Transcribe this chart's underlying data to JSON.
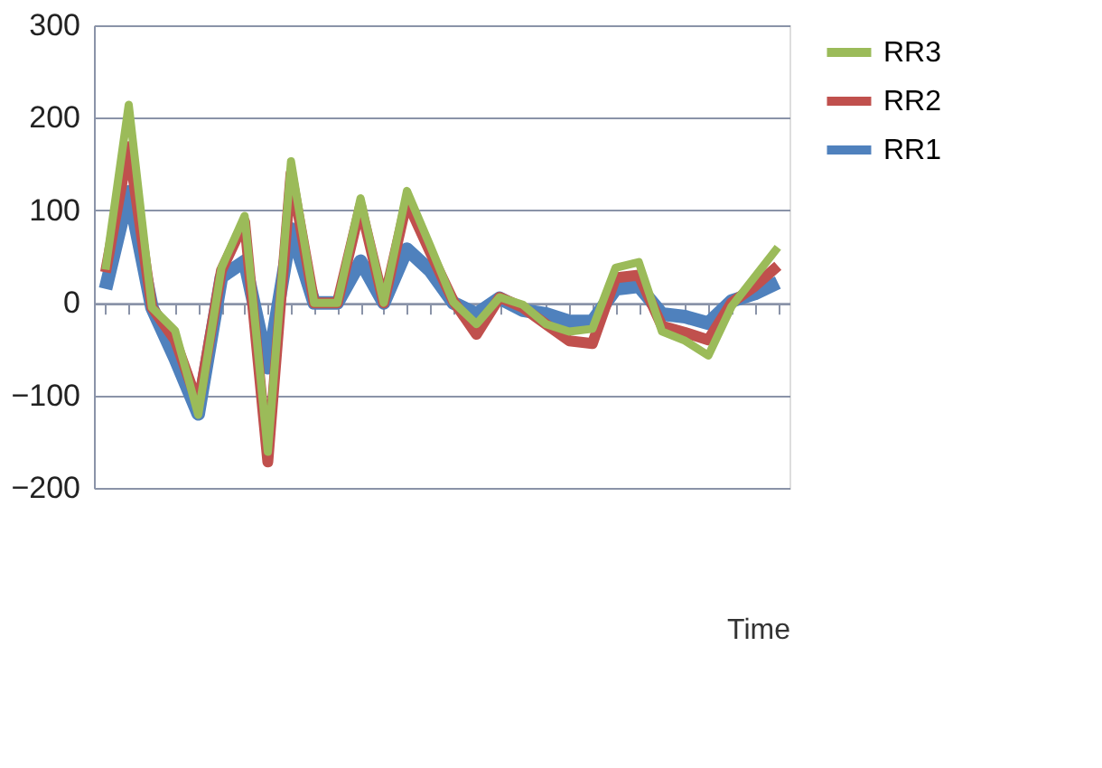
{
  "chart_data": {
    "type": "line",
    "xlabel": "Time",
    "categories": [
      null,
      null,
      null,
      null,
      null,
      null,
      null,
      null,
      null,
      null,
      null,
      null,
      null,
      null,
      null,
      null,
      null,
      null,
      null,
      null,
      null,
      null,
      null,
      null,
      null,
      null,
      null,
      null,
      null,
      null
    ],
    "series": [
      {
        "name": "RR1",
        "color": "#4f81bd",
        "values": [
          15,
          120,
          -5,
          -60,
          -120,
          28,
          45,
          -70,
          80,
          0,
          0,
          45,
          0,
          58,
          35,
          0,
          -12,
          5,
          -8,
          -12,
          -20,
          -20,
          15,
          18,
          -12,
          -15,
          -22,
          2,
          10,
          22
        ]
      },
      {
        "name": "RR2",
        "color": "#c0504d",
        "values": [
          33,
          169,
          -5,
          -40,
          -110,
          35,
          88,
          -172,
          140,
          0,
          0,
          105,
          0,
          110,
          55,
          2,
          -34,
          6,
          -5,
          -23,
          -41,
          -44,
          27,
          30,
          -25,
          -32,
          -40,
          0,
          18,
          40
        ]
      },
      {
        "name": "RR3",
        "color": "#9bbb59",
        "values": [
          36,
          214,
          -5,
          -30,
          -121,
          38,
          94,
          -161,
          153,
          0,
          0,
          113,
          0,
          121,
          62,
          1,
          -23,
          6,
          -2,
          -23,
          -31,
          -28,
          38,
          44,
          -31,
          -41,
          -57,
          -4,
          28,
          60
        ]
      }
    ],
    "ylim": [
      -200,
      300
    ],
    "yticks": [
      -200,
      -100,
      0,
      100,
      200,
      300
    ],
    "grid": "y",
    "legend": "right",
    "marker": "none",
    "line_style": "solid"
  }
}
